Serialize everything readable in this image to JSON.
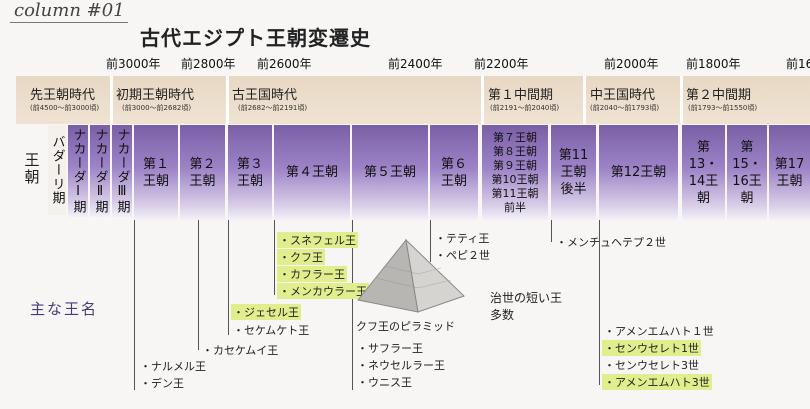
{
  "column_label": "column #01",
  "title": "古代エジプト王朝変遷史",
  "years": [
    "前3000年",
    "前2800年",
    "前2600年",
    "前2400年",
    "前2200年",
    "前2000年",
    "前1800年",
    "前16"
  ],
  "periods": [
    {
      "name": "先王朝時代",
      "range": "(前4500〜前3000頃)"
    },
    {
      "name": "初期王朝時代",
      "range": "(前3000〜前2682頃)"
    },
    {
      "name": "古王国時代",
      "range": "(前2682〜前2191頃)"
    },
    {
      "name": "第１中間期",
      "range": "(前2191〜前2040頃)"
    },
    {
      "name": "中王国時代",
      "range": "(前2040〜前1793頃)"
    },
    {
      "name": "第２中間期",
      "range": "(前1793〜前1550頃)"
    }
  ],
  "row_label": "王朝",
  "dynasties": [
    "バダーリ期",
    "ナカーダⅠ期",
    "ナカーダⅡ期",
    "ナカーダⅢ期",
    "第１王朝",
    "第２王朝",
    "第３王朝",
    "第４王朝",
    "第５王朝",
    "第６王朝",
    "第７王朝 第８王朝 第９王朝 第10王朝 第11王朝 前半",
    "第11王朝後半",
    "第12王朝",
    "第13・14王朝",
    "第15・16王朝",
    "第17王朝"
  ],
  "main_kings_label": "主な王名",
  "kings": {
    "d1": [
      "ナルメル王",
      "デン王"
    ],
    "d2": [
      "カセケムイ王"
    ],
    "d3": [
      "ジェセル王",
      "セケムケト王"
    ],
    "d4": [
      "スネフェル王",
      "クフ王",
      "カフラー王",
      "メンカウラー王"
    ],
    "d5": [
      "サフラー王",
      "ネウセルラー王",
      "ウニス王"
    ],
    "d6": [
      "テティ王",
      "ペピ２世"
    ],
    "d11": [
      "メンチュヘテプ２世"
    ],
    "d12": [
      "アメンエムハト１世",
      "センウセレト1世",
      "センウセレト3世",
      "アメンエムハト3世"
    ]
  },
  "fip_note": "治世の短い王多数",
  "pyramid_caption": "クフ王のピラミッド",
  "colors": {
    "dynasty": "#7a5fa6",
    "band": "#ecdcc8",
    "highlight": "#e2ee8e",
    "label": "#4a3a78"
  }
}
